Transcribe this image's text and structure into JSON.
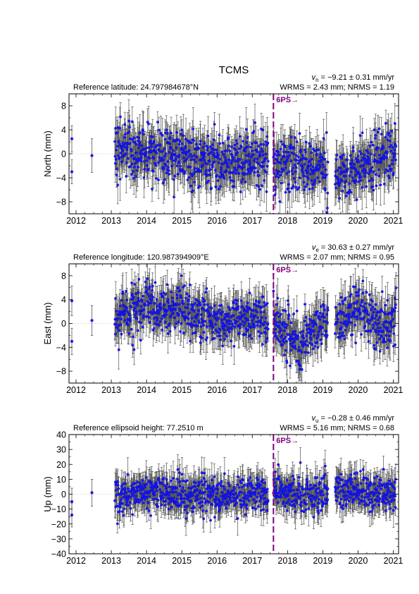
{
  "title": "TCMS",
  "colors": {
    "point": "#1a1aff",
    "point_edge": "#0000aa",
    "errorbar": "#555555",
    "event": "#800080",
    "zero_line": "#bbbbbb"
  },
  "x_axis": {
    "range": [
      2011.8,
      2021.15
    ],
    "ticks": [
      2012,
      2013,
      2014,
      2015,
      2016,
      2017,
      2018,
      2019,
      2020,
      2021
    ],
    "tick_labels": [
      "2012",
      "2013",
      "2014",
      "2015",
      "2016",
      "2017",
      "2018",
      "2019",
      "2020",
      "2021"
    ]
  },
  "event": {
    "label": "6PS→",
    "epoch": 2017.6
  },
  "chart_data": [
    {
      "type": "scatter",
      "name": "north",
      "ylabel": "North (mm)",
      "ylim": [
        -10,
        10
      ],
      "yticks": [
        -8,
        -4,
        0,
        4,
        8
      ],
      "ytick_labels": [
        "−8",
        "−4",
        "0",
        "4",
        "8"
      ],
      "reference": "Reference latitude: 24.797984678°N",
      "velocity_symbol": "v",
      "velocity_sub": "n",
      "velocity_value": " = −9.21 ± 0.31 mm/yr",
      "stats": "WRMS = 2.43 mm; NRMS = 1.19",
      "sparse_points": [
        {
          "x": 2011.88,
          "y": 2.5,
          "err": 2.2
        },
        {
          "x": 2011.88,
          "y": -3.0,
          "err": 2.0
        },
        {
          "x": 2012.45,
          "y": -0.3,
          "err": 2.8
        }
      ],
      "segments": [
        [
          2013.1,
          2017.45
        ],
        [
          2017.6,
          2019.15
        ],
        [
          2019.35,
          2021.08
        ]
      ],
      "trend": [
        [
          2013.1,
          1.0
        ],
        [
          2014.0,
          0.5
        ],
        [
          2015.0,
          -0.5
        ],
        [
          2016.0,
          -1.5
        ],
        [
          2017.0,
          -0.5
        ],
        [
          2017.6,
          -1.5
        ],
        [
          2018.5,
          -2.0
        ],
        [
          2019.1,
          -3.2
        ],
        [
          2019.4,
          -3.5
        ],
        [
          2020.0,
          -3.0
        ],
        [
          2020.5,
          -1.5
        ],
        [
          2021.08,
          0.5
        ]
      ],
      "scatter": 2.2,
      "errbar": 2.8
    },
    {
      "type": "scatter",
      "name": "east",
      "ylabel": "East (mm)",
      "ylim": [
        -10,
        10
      ],
      "yticks": [
        -8,
        -4,
        0,
        4,
        8
      ],
      "ytick_labels": [
        "−8",
        "−4",
        "0",
        "4",
        "8"
      ],
      "reference": "Reference longitude: 120.987394909°E",
      "velocity_symbol": "v",
      "velocity_sub": "e",
      "velocity_value": " = 30.63 ± 0.27 mm/yr",
      "stats": "WRMS = 2.07 mm; NRMS = 0.95",
      "sparse_points": [
        {
          "x": 2011.88,
          "y": 3.8,
          "err": 2.5
        },
        {
          "x": 2011.88,
          "y": -3.0,
          "err": 2.2
        },
        {
          "x": 2012.45,
          "y": 0.5,
          "err": 2.5
        }
      ],
      "segments": [
        [
          2013.1,
          2017.45
        ],
        [
          2017.6,
          2019.15
        ],
        [
          2019.35,
          2021.08
        ]
      ],
      "trend": [
        [
          2013.1,
          1.0
        ],
        [
          2013.9,
          3.0
        ],
        [
          2014.5,
          2.0
        ],
        [
          2015.0,
          3.5
        ],
        [
          2015.5,
          1.0
        ],
        [
          2016.5,
          0.5
        ],
        [
          2017.4,
          0.5
        ],
        [
          2017.6,
          0.0
        ],
        [
          2018.0,
          -1.5
        ],
        [
          2018.3,
          -4.0
        ],
        [
          2018.6,
          -2.0
        ],
        [
          2019.1,
          -0.5
        ],
        [
          2019.4,
          0.5
        ],
        [
          2020.0,
          2.0
        ],
        [
          2020.7,
          -1.0
        ],
        [
          2021.08,
          1.5
        ]
      ],
      "scatter": 2.0,
      "errbar": 2.6
    },
    {
      "type": "scatter",
      "name": "up",
      "ylabel": "Up (mm)",
      "ylim": [
        -40,
        40
      ],
      "yticks": [
        -40,
        -30,
        -20,
        -10,
        0,
        10,
        20,
        30,
        40
      ],
      "ytick_labels": [
        "−40",
        "−30",
        "−20",
        "−10",
        "0",
        "10",
        "20",
        "30",
        "40"
      ],
      "reference": "Reference ellipsoid height: 77.2510 m",
      "velocity_symbol": "v",
      "velocity_sub": "u",
      "velocity_value": " = −0.28 ± 0.46 mm/yr",
      "stats": "WRMS = 5.16 mm; NRMS = 0.68",
      "sparse_points": [
        {
          "x": 2011.88,
          "y": -5.0,
          "err": 9.0
        },
        {
          "x": 2011.88,
          "y": -14.0,
          "err": 8.0
        },
        {
          "x": 2012.45,
          "y": 1.0,
          "err": 9.0
        }
      ],
      "segments": [
        [
          2013.1,
          2017.45
        ],
        [
          2017.6,
          2019.15
        ],
        [
          2019.35,
          2021.08
        ]
      ],
      "trend": [
        [
          2013.1,
          0.0
        ],
        [
          2014.0,
          1.0
        ],
        [
          2015.0,
          0.0
        ],
        [
          2016.0,
          -1.0
        ],
        [
          2017.0,
          0.0
        ],
        [
          2018.0,
          0.0
        ],
        [
          2019.1,
          -1.0
        ],
        [
          2019.4,
          3.0
        ],
        [
          2020.0,
          4.0
        ],
        [
          2021.08,
          1.0
        ]
      ],
      "scatter": 6.0,
      "errbar": 9.0
    }
  ]
}
